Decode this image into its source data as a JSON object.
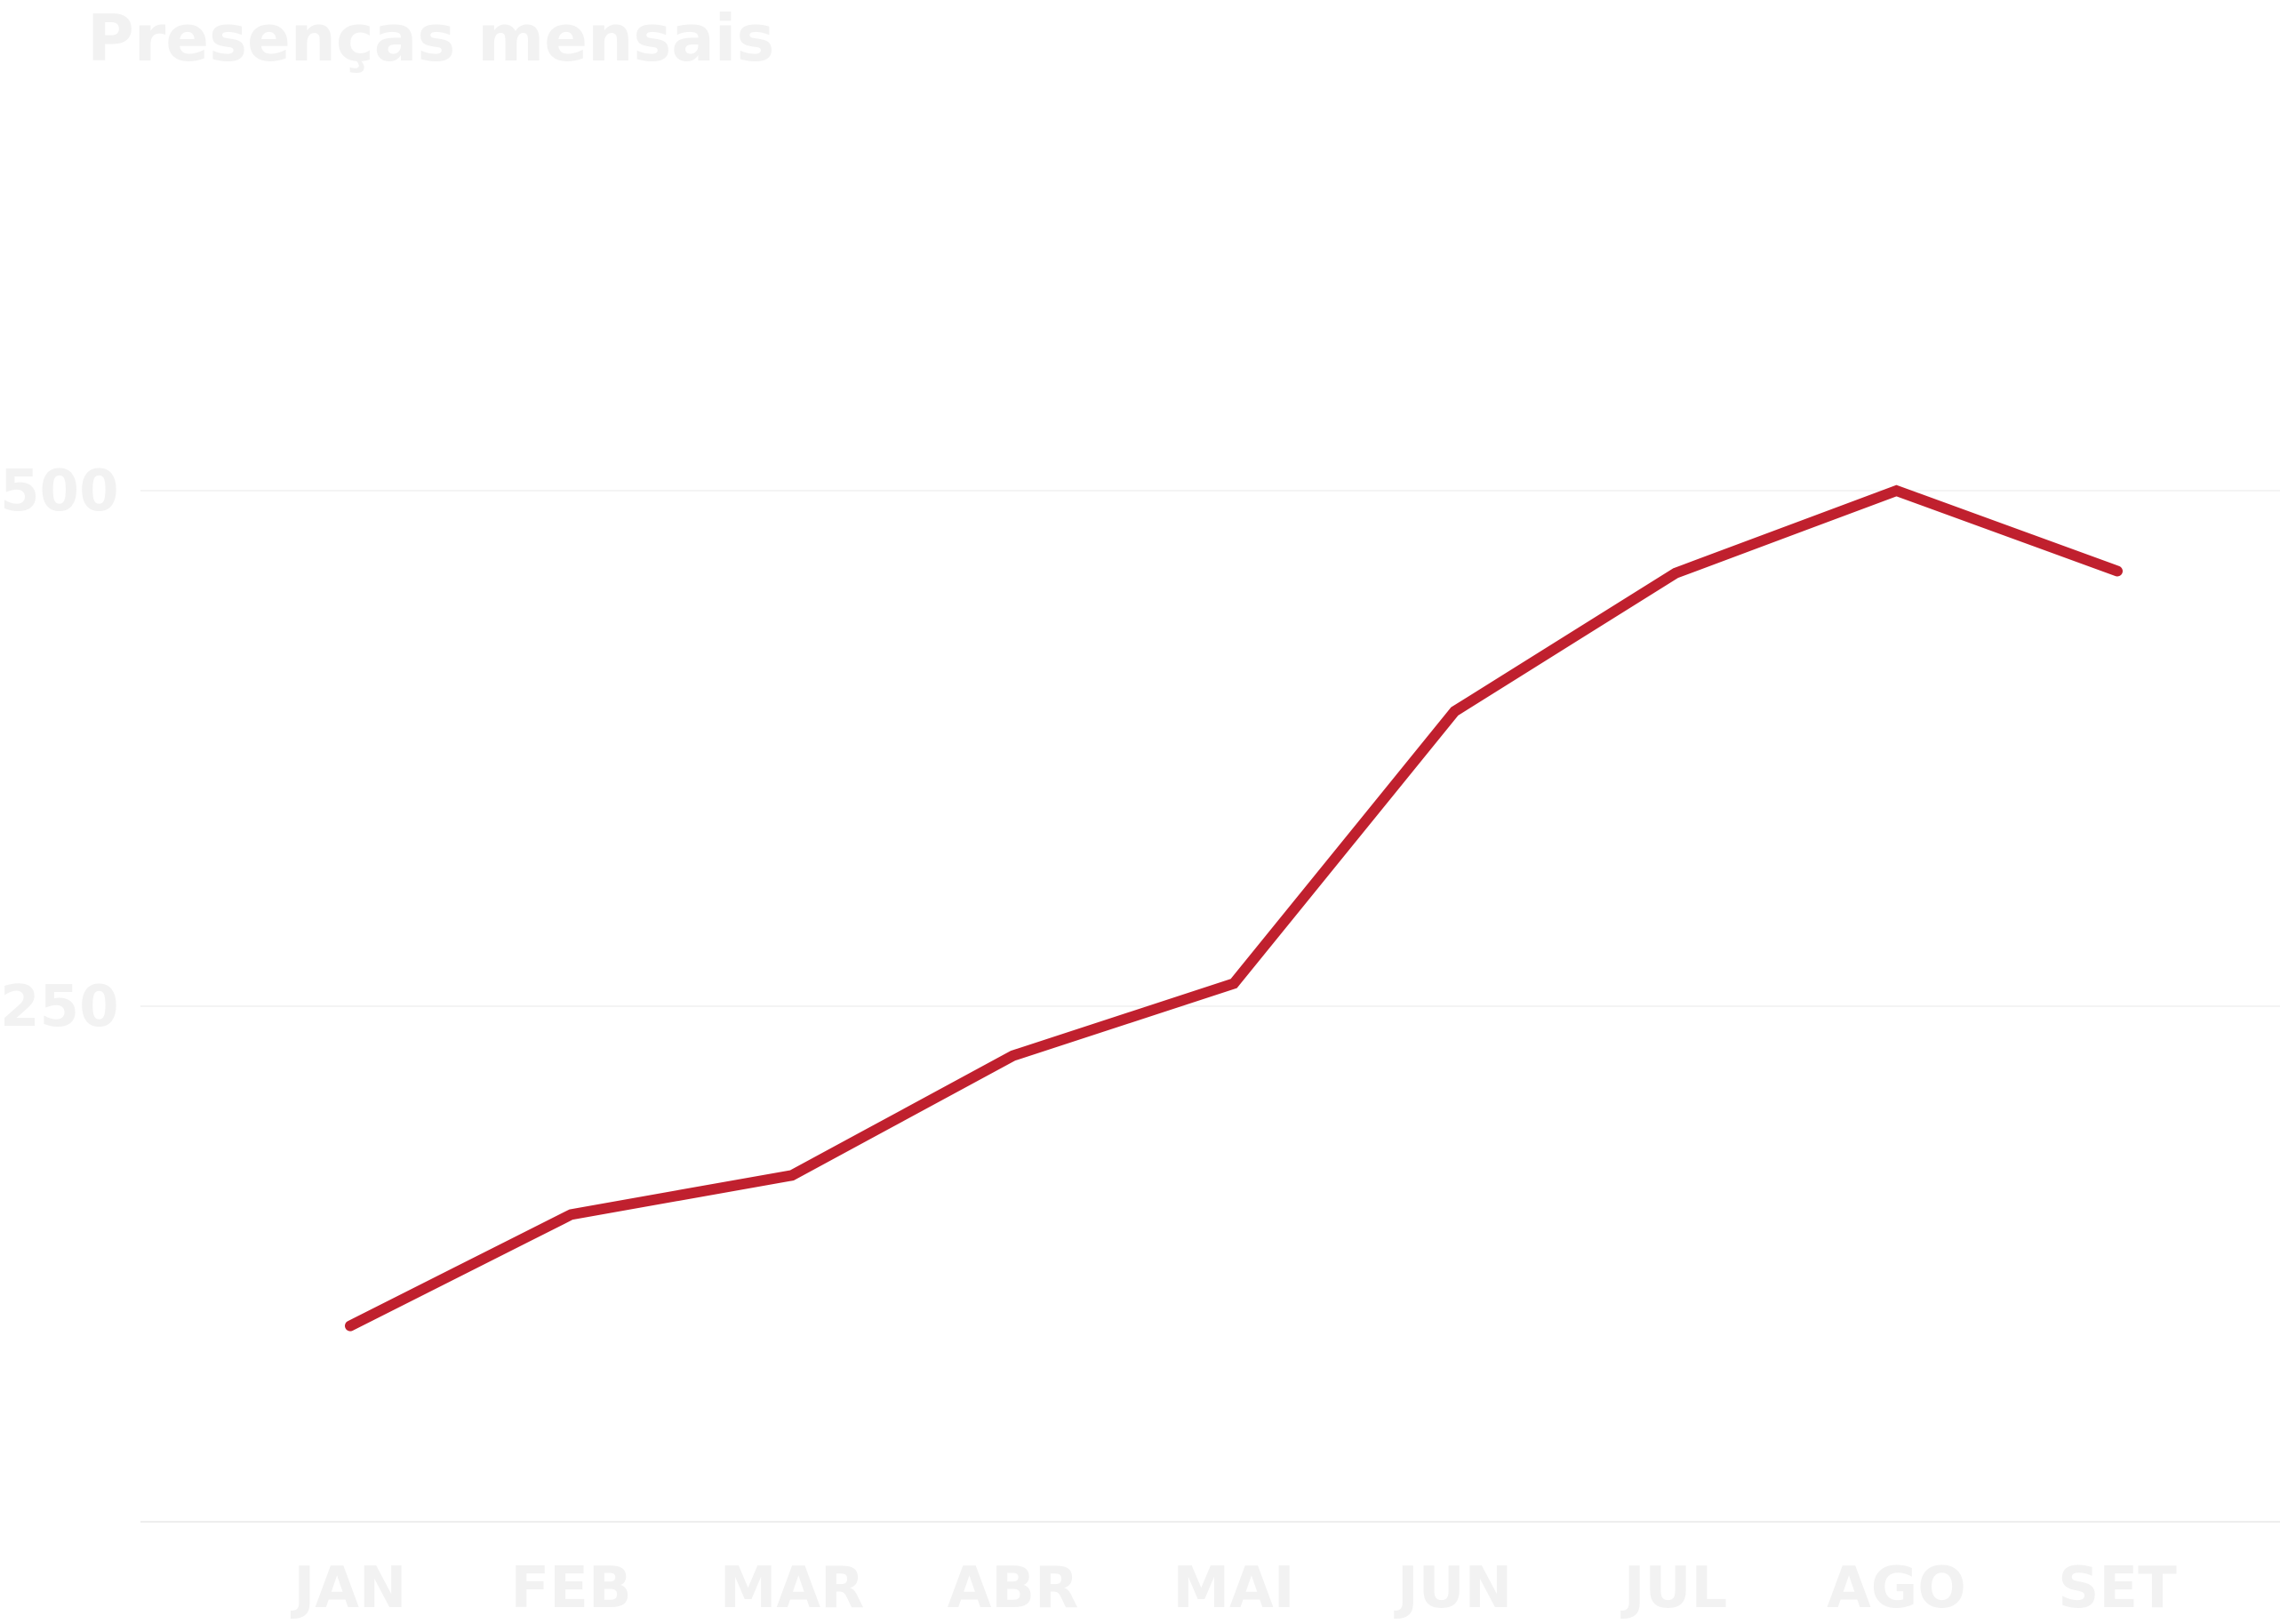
{
  "chart_data": {
    "type": "line",
    "title": "Presenças mensais",
    "xlabel": "",
    "ylabel": "",
    "categories": [
      "JAN",
      "FEB",
      "MAR",
      "ABR",
      "MAI",
      "JUN",
      "JUL",
      "AGO",
      "SET"
    ],
    "series": [
      {
        "values": [
          95,
          149,
          168,
          226,
          261,
          393,
          460,
          500,
          461
        ]
      }
    ],
    "ylim": [
      0,
      500
    ],
    "yticks": [
      250,
      500
    ],
    "grid": true,
    "legend": "none",
    "colors": {
      "line": "#c0202e",
      "text": "#f2f2f2",
      "grid": "#f4f4f4"
    }
  }
}
